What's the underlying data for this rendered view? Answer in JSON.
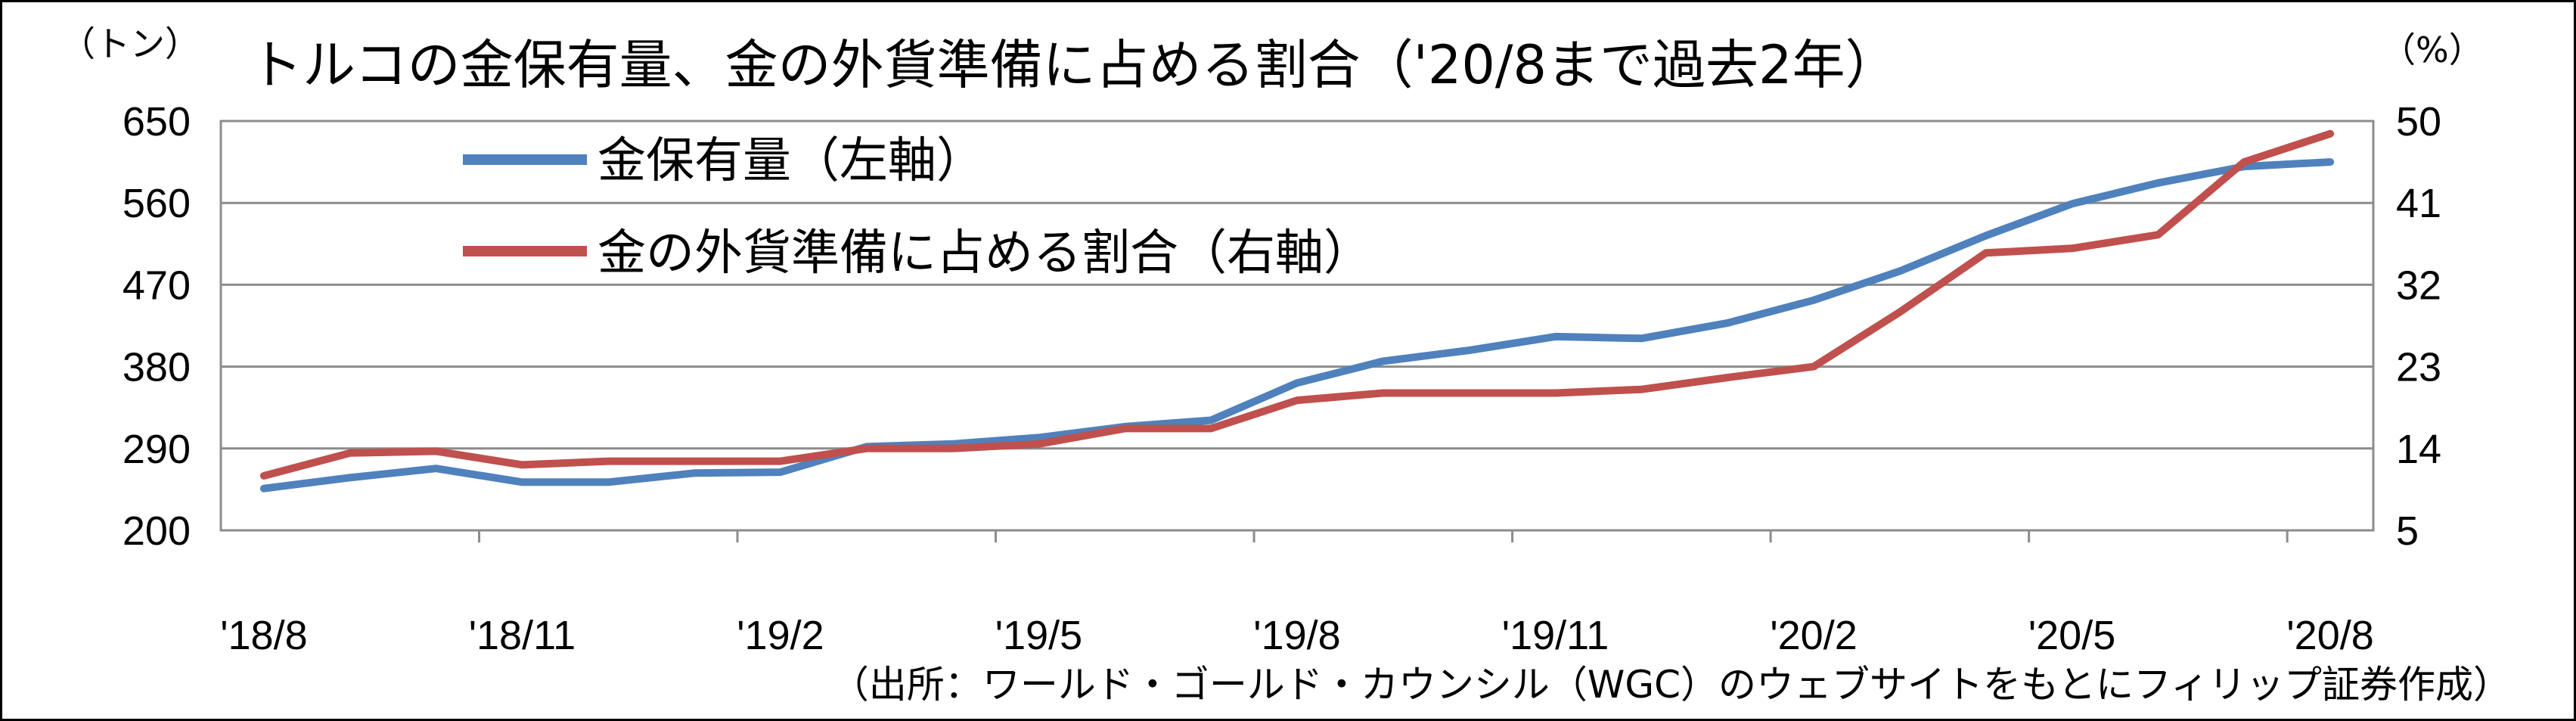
{
  "chart_data": {
    "type": "line",
    "title": "トルコの金保有量、金の外貨準備に占める割合（'20/8まで過去2年）",
    "left_unit": "（トン）",
    "right_unit": "（%）",
    "source": "（出所：ワールド・ゴールド・カウンシル（WGC）のウェブサイトをもとにフィリップ証券作成）",
    "x_tick_labels": [
      "'18/8",
      "'18/11",
      "'19/2",
      "'19/5",
      "'19/8",
      "'19/11",
      "'20/2",
      "'20/5",
      "'20/8"
    ],
    "y_left": {
      "ylim": [
        200,
        650
      ],
      "ticks": [
        "650",
        "560",
        "470",
        "380",
        "290",
        "200"
      ]
    },
    "y_right": {
      "ylim": [
        5,
        50
      ],
      "ticks": [
        "50",
        "41",
        "32",
        "23",
        "14",
        "5"
      ]
    },
    "legend_position": "top-left",
    "grid": "horizontal",
    "x": [
      "'18/8",
      "'18/9",
      "'18/10",
      "'18/11",
      "'18/12",
      "'19/1",
      "'19/2",
      "'19/3",
      "'19/4",
      "'19/5",
      "'19/6",
      "'19/7",
      "'19/8",
      "'19/9",
      "'19/10",
      "'19/11",
      "'19/12",
      "'20/1",
      "'20/2",
      "'20/3",
      "'20/4",
      "'20/5",
      "'20/6",
      "'20/7",
      "'20/8"
    ],
    "series": [
      {
        "name": "金保有量（左軸）",
        "axis": "left",
        "color": "#4F81BD",
        "values": [
          246,
          258,
          268,
          253,
          253,
          263,
          264,
          292,
          295,
          302,
          314,
          321,
          362,
          386,
          398,
          413,
          411,
          428,
          453,
          485,
          524,
          559,
          582,
          600,
          605
        ]
      },
      {
        "name": "金の外貨準備に占める割合（右軸）",
        "axis": "right",
        "color": "#C0504D",
        "values": [
          11.0,
          13.5,
          13.7,
          12.2,
          12.6,
          12.6,
          12.6,
          14.0,
          14.0,
          14.5,
          16.2,
          16.2,
          19.3,
          20.1,
          20.1,
          20.1,
          20.5,
          21.8,
          23.0,
          29.0,
          35.5,
          36.0,
          37.5,
          45.5,
          48.6
        ]
      }
    ]
  }
}
